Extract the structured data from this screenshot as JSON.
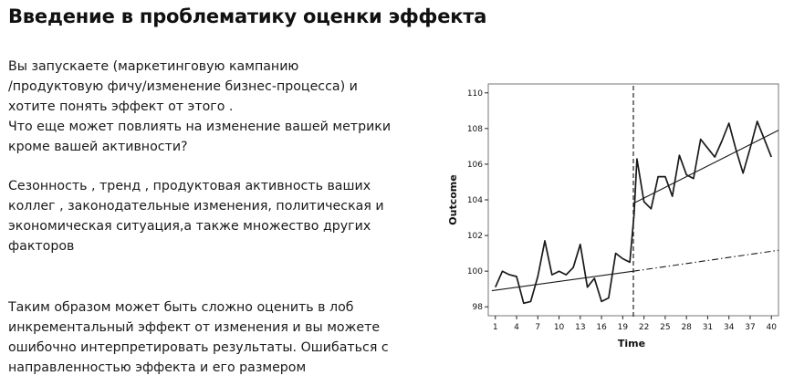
{
  "slide": {
    "title": "Введение в проблематику оценки эффекта",
    "paragraph1": [
      "Вы запускаете (маркетинговую кампанию",
      "/продуктовую фичу/изменение бизнес-процесса) и",
      "хотите понять эффект от этого .",
      "Что еще может повлиять на изменение вашей метрики",
      "кроме вашей активности?"
    ],
    "paragraph2": [
      "Сезонность , тренд , продуктовая активность ваших",
      "коллег , законодательные изменения, политическая и",
      "экономическая ситуация,а также множество других",
      "факторов"
    ],
    "paragraph3": [
      "Таким образом может быть сложно оценить в лоб",
      "инкрементальный эффект от изменения и вы можете",
      "ошибочно интерпретировать результаты. Ошибаться с",
      "направленностью эффекта и его размером"
    ]
  },
  "chart_data": {
    "type": "line",
    "xlabel": "Time",
    "ylabel": "Outcome",
    "xlim": [
      0,
      41
    ],
    "ylim": [
      97.5,
      110.5
    ],
    "xticks": [
      1,
      4,
      7,
      10,
      13,
      16,
      19,
      22,
      25,
      28,
      31,
      34,
      37,
      40
    ],
    "yticks": [
      98,
      100,
      102,
      104,
      106,
      108,
      110
    ],
    "grid": false,
    "intervention_x": 20.5,
    "series": [
      {
        "style": "solid",
        "x": [
          1,
          2,
          3,
          4,
          5,
          6,
          7,
          8,
          9,
          10,
          11,
          12,
          13,
          14,
          15,
          16,
          17,
          18,
          19,
          20,
          20.6,
          21,
          22,
          23,
          24,
          25,
          26,
          27,
          28,
          29,
          30,
          31,
          32,
          33,
          34,
          35,
          36,
          37,
          38,
          39,
          40
        ],
        "y": [
          99.1,
          100.0,
          99.8,
          99.7,
          98.2,
          98.3,
          99.7,
          101.7,
          99.8,
          100.0,
          99.8,
          100.2,
          101.5,
          99.1,
          99.6,
          98.3,
          98.5,
          101.0,
          100.7,
          100.5,
          103.2,
          106.3,
          103.9,
          103.5,
          105.3,
          105.3,
          104.2,
          106.5,
          105.4,
          105.2,
          107.4,
          106.9,
          106.4,
          107.3,
          108.3,
          106.8,
          105.5,
          106.9,
          108.4,
          107.4,
          106.4
        ]
      },
      {
        "style": "solid-trend",
        "x": [
          0.5,
          20.5
        ],
        "y": [
          98.9,
          100.0
        ]
      },
      {
        "style": "solid-trend",
        "x": [
          20.5,
          41.5
        ],
        "y": [
          103.8,
          108.0
        ]
      },
      {
        "style": "dash-dot",
        "x": [
          20.5,
          41.5
        ],
        "y": [
          100.0,
          101.2
        ]
      }
    ]
  }
}
